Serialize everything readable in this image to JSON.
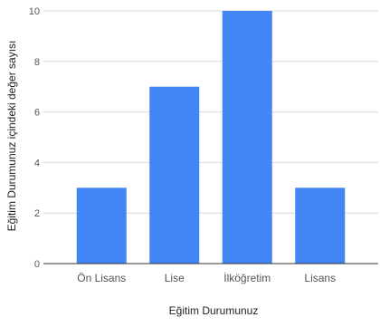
{
  "chart_data": {
    "type": "bar",
    "categories": [
      "Ön Lisans",
      "Lise",
      "İlköğretim",
      "Lisans"
    ],
    "values": [
      3,
      7,
      10,
      3
    ],
    "title": "",
    "xlabel": "Eğitim Durumunuz",
    "ylabel": "Eğitim Durumunuz içindeki değer sayısı",
    "ylim": [
      0,
      10
    ],
    "yticks": [
      0,
      2,
      4,
      6,
      8,
      10
    ],
    "grid": true,
    "bar_color": "#4285f4",
    "grid_color": "#d9d9d9",
    "axis_color": "#333333"
  }
}
